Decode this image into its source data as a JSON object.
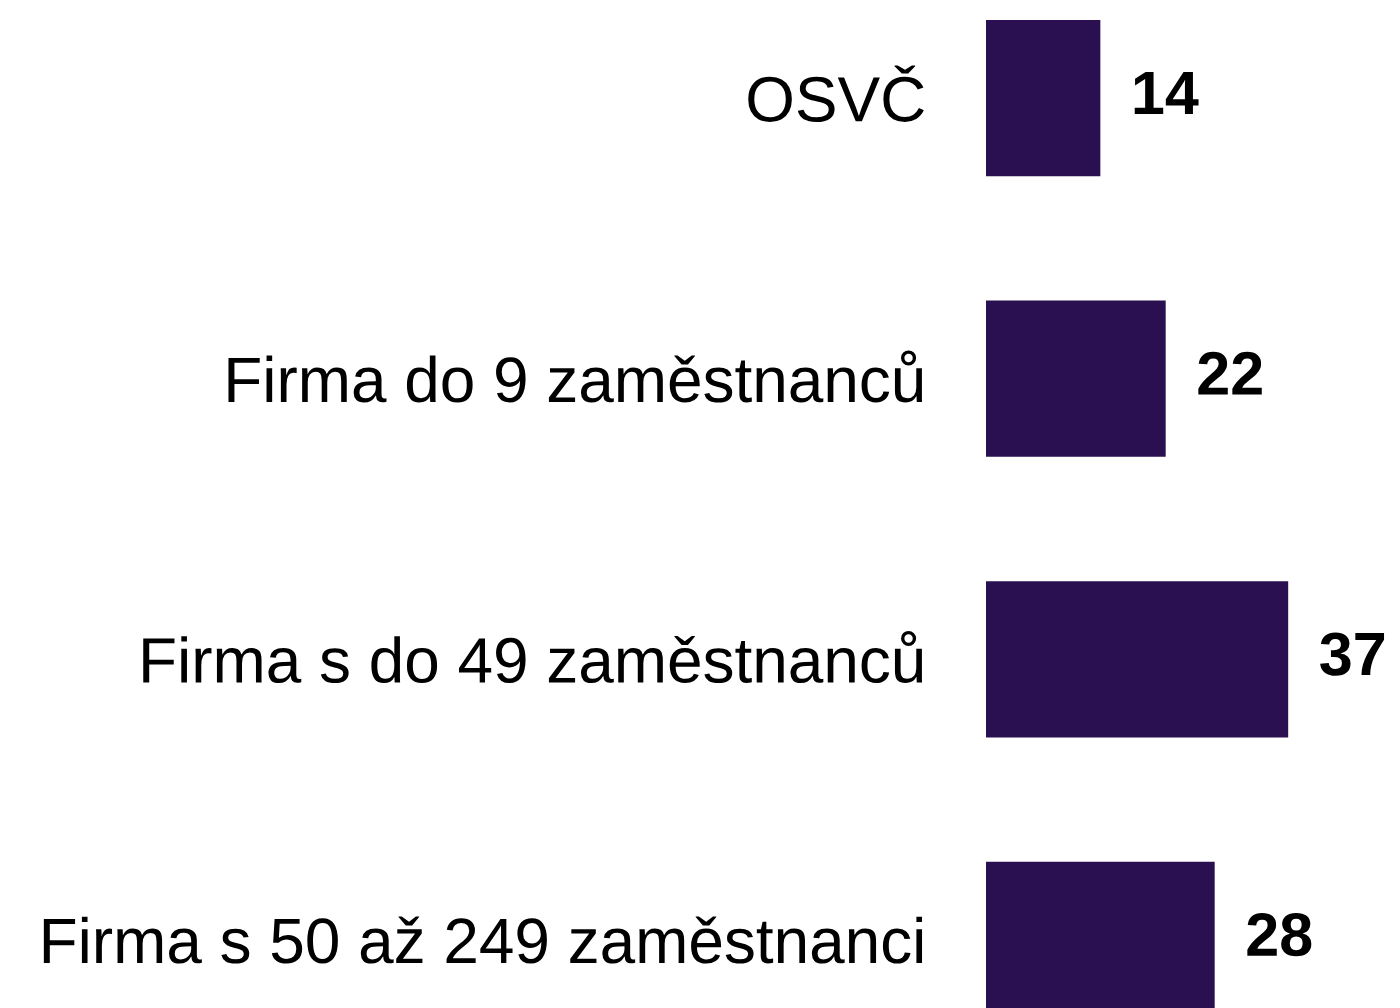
{
  "chart_data": {
    "type": "bar",
    "orientation": "horizontal",
    "categories": [
      "OSVČ",
      "Firma do 9 zaměstnanců",
      "Firma s do 49 zaměstnanců",
      "Firma s 50 až 249 zaměstnanci"
    ],
    "values": [
      14,
      22,
      37,
      28
    ],
    "color": "#2a1050",
    "data_labels": true,
    "tick_labels": "y"
  }
}
